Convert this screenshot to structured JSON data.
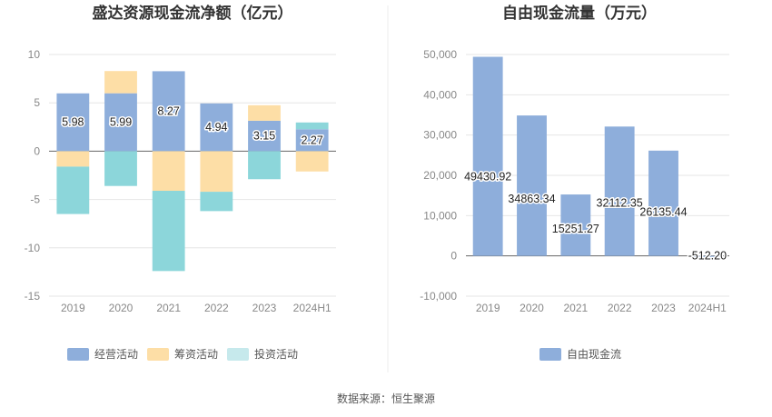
{
  "chart_data": [
    {
      "type": "bar",
      "stacked": true,
      "title": "盛达资源现金流净额（亿元）",
      "categories": [
        "2019",
        "2020",
        "2021",
        "2022",
        "2023",
        "2024H1"
      ],
      "ylim": [
        -15,
        10
      ],
      "yticks": [
        10,
        5,
        0,
        -5,
        -10,
        -15
      ],
      "series": [
        {
          "name": "经营活动",
          "color": "#8eaedb",
          "values": [
            5.98,
            5.99,
            8.27,
            4.94,
            3.15,
            2.27
          ]
        },
        {
          "name": "筹资活动",
          "color": "#fddea6",
          "values": [
            -1.6,
            2.3,
            -4.1,
            -4.2,
            1.6,
            -2.1
          ]
        },
        {
          "name": "投资活动",
          "color": "#8cd6da",
          "values": [
            -4.9,
            -3.6,
            -8.3,
            -2.0,
            -2.9,
            0.7
          ]
        }
      ],
      "data_labels": [
        "5.98",
        "5.99",
        "8.27",
        "4.94",
        "3.15",
        "2.27"
      ],
      "legend": [
        "经营活动",
        "筹资活动",
        "投资活动"
      ],
      "legend_colors": [
        "#8eaedb",
        "#fddea6",
        "#c6e9ec"
      ]
    },
    {
      "type": "bar",
      "title": "自由现金流量（万元）",
      "categories": [
        "2019",
        "2020",
        "2021",
        "2022",
        "2023",
        "2024H1"
      ],
      "ylim": [
        -10000,
        50000
      ],
      "yticks": [
        50000,
        40000,
        30000,
        20000,
        10000,
        0,
        -10000
      ],
      "ytick_labels": [
        "50,000",
        "40,000",
        "30,000",
        "20,000",
        "10,000",
        "0",
        "-10,000"
      ],
      "series": [
        {
          "name": "自由现金流",
          "color": "#8eaedb",
          "values": [
            49430.92,
            34863.34,
            15251.27,
            32112.35,
            26135.44,
            -512.2
          ]
        }
      ],
      "data_labels": [
        "49430.92",
        "34863.34",
        "15251.27",
        "32112.35",
        "26135.44",
        "-512.20"
      ],
      "legend": [
        "自由现金流"
      ]
    }
  ],
  "footer": {
    "source": "数据来源：恒生聚源"
  }
}
